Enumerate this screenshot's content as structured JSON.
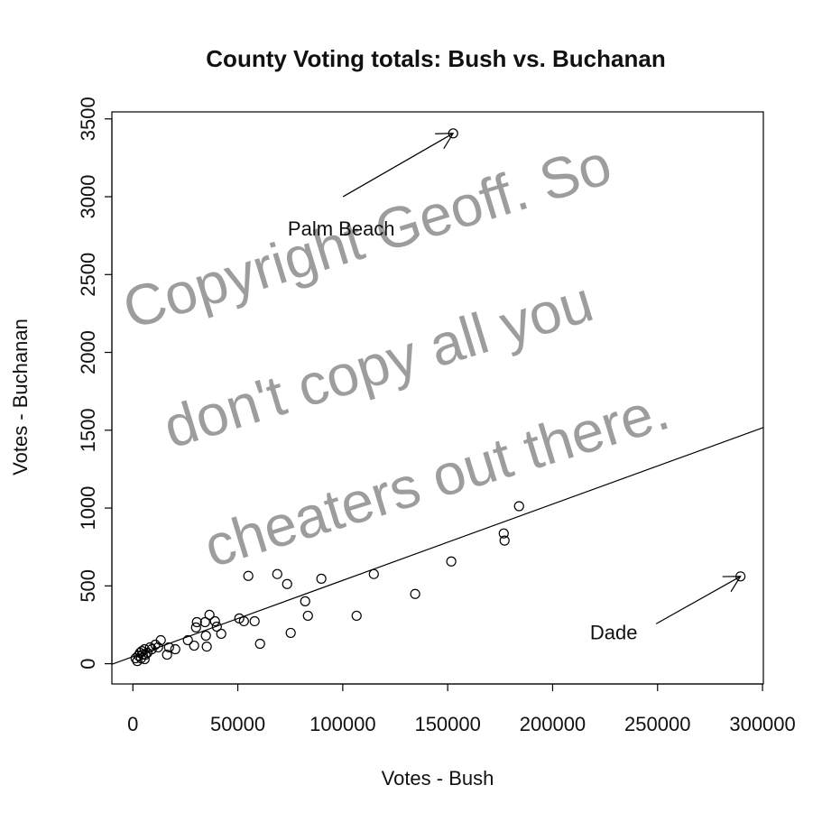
{
  "chart_data": {
    "type": "scatter",
    "title": "County Voting totals: Bush vs. Buchanan",
    "x_label": "Votes - Bush",
    "y_label": "Votes - Buchanan",
    "xlim": [
      -10000,
      300400
    ],
    "ylim": [
      -130,
      3545
    ],
    "xticks": [
      0,
      50000,
      100000,
      150000,
      200000,
      250000,
      300000
    ],
    "yticks": [
      0,
      500,
      1000,
      1500,
      2000,
      2500,
      3000,
      3500
    ],
    "color": "#000000",
    "x": [
      152600,
      289500,
      184000,
      176700,
      177100,
      151700,
      114800,
      134500,
      106600,
      89800,
      82100,
      83400,
      68800,
      73500,
      75200,
      55000,
      58000,
      60600,
      50700,
      52900,
      36500,
      39100,
      40000,
      42100,
      34800,
      34400,
      30500,
      30100,
      29200,
      26200,
      35200,
      20200,
      17200,
      13300,
      12000,
      10700,
      8200,
      16300,
      4300,
      5600,
      2600,
      2100,
      3900,
      5600,
      4700,
      6900,
      1300,
      3400,
      6000,
      9000
    ],
    "values": [
      3407,
      561,
      1012,
      837,
      791,
      657,
      576,
      448,
      308,
      546,
      401,
      308,
      576,
      512,
      198,
      564,
      273,
      128,
      291,
      273,
      314,
      273,
      238,
      192,
      180,
      267,
      267,
      233,
      116,
      151,
      110,
      93,
      105,
      151,
      105,
      122,
      105,
      58,
      81,
      93,
      52,
      17,
      35,
      29,
      58,
      70,
      35,
      70,
      58,
      93
    ],
    "fit": {
      "intercept": 45.3,
      "slope": 0.0049
    },
    "annotations": [
      {
        "text": "Palm Beach",
        "x": 99300,
        "y": 2785,
        "arrow_from": [
          100100,
          3000
        ],
        "arrow_to": [
          152600,
          3407
        ]
      },
      {
        "text": "Dade",
        "x": 229100,
        "y": 192,
        "arrow_from": [
          249300,
          256
        ],
        "arrow_to": [
          289500,
          561
        ]
      }
    ],
    "watermark": [
      "Copyright Geoff. So",
      "don't copy all you",
      "cheaters out there."
    ]
  }
}
